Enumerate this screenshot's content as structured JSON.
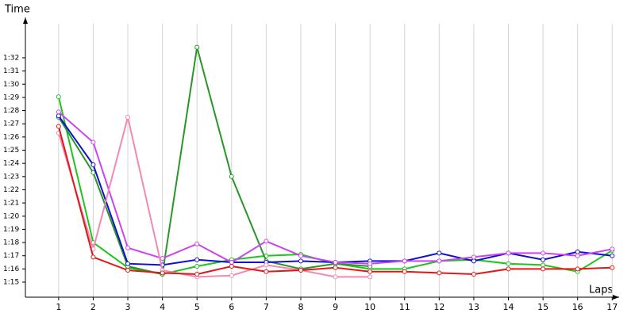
{
  "chart_data": {
    "type": "line",
    "x_label": "Laps",
    "y_label": "Time",
    "x": [
      1,
      2,
      3,
      4,
      5,
      6,
      7,
      8,
      9,
      10,
      11,
      12,
      13,
      14,
      15,
      16,
      17
    ],
    "xlim": [
      0.04,
      17.2
    ],
    "xticks": [
      1,
      2,
      3,
      4,
      5,
      6,
      7,
      8,
      9,
      10,
      11,
      12,
      13,
      14,
      15,
      16,
      17
    ],
    "ylim": [
      73.86,
      95.06
    ],
    "yticks": [
      {
        "value": 75,
        "label": "1:15"
      },
      {
        "value": 76,
        "label": "1:16"
      },
      {
        "value": 77,
        "label": "1:17"
      },
      {
        "value": 78,
        "label": "1:18"
      },
      {
        "value": 79,
        "label": "1:19"
      },
      {
        "value": 80,
        "label": "1:20"
      },
      {
        "value": 81,
        "label": "1:21"
      },
      {
        "value": 82,
        "label": "1:22"
      },
      {
        "value": 83,
        "label": "1:23"
      },
      {
        "value": 84,
        "label": "1:24"
      },
      {
        "value": 85,
        "label": "1:25"
      },
      {
        "value": 86,
        "label": "1:26"
      },
      {
        "value": 87,
        "label": "1:27"
      },
      {
        "value": 88,
        "label": "1:28"
      },
      {
        "value": 89,
        "label": "1:29"
      },
      {
        "value": 90,
        "label": "1:30"
      },
      {
        "value": 91,
        "label": "1:31"
      },
      {
        "value": 92,
        "label": "1:32"
      }
    ],
    "grid": "x",
    "series": [
      {
        "color": "#1fc41f",
        "values": [
          89.05,
          78.0,
          76.1,
          75.6,
          76.2,
          76.7,
          77.0,
          77.1,
          76.4,
          76.0,
          76.0,
          76.6,
          76.7,
          76.4,
          76.3,
          75.8,
          77.4
        ]
      },
      {
        "color": "#2a962a",
        "values": [
          87.5,
          83.3,
          76.2,
          75.6,
          92.8,
          83.0,
          76.6,
          76.0,
          76.4,
          76.2,
          null,
          null,
          null,
          null,
          null,
          null,
          null
        ]
      },
      {
        "color": "#1010cc",
        "values": [
          87.6,
          83.9,
          76.4,
          76.3,
          76.7,
          76.5,
          76.5,
          76.6,
          76.5,
          76.6,
          76.6,
          77.2,
          76.6,
          77.2,
          76.7,
          77.3,
          77.0
        ]
      },
      {
        "color": "#cc44ee",
        "values": [
          87.9,
          85.6,
          77.6,
          76.8,
          77.9,
          76.5,
          78.1,
          77.0,
          76.5,
          76.4,
          76.6,
          76.6,
          76.9,
          77.2,
          77.2,
          77.0,
          77.5
        ]
      },
      {
        "color": "#f288b4",
        "values": [
          86.3,
          77.5,
          87.5,
          75.9,
          75.4,
          75.5,
          76.3,
          75.9,
          75.4,
          75.4,
          null,
          null,
          null,
          null,
          null,
          null,
          null
        ]
      },
      {
        "color": "#e01818",
        "values": [
          86.8,
          76.9,
          75.9,
          75.7,
          75.6,
          76.2,
          75.8,
          75.9,
          76.1,
          75.8,
          75.8,
          75.7,
          75.6,
          76.0,
          76.0,
          76.0,
          76.1
        ]
      }
    ]
  }
}
